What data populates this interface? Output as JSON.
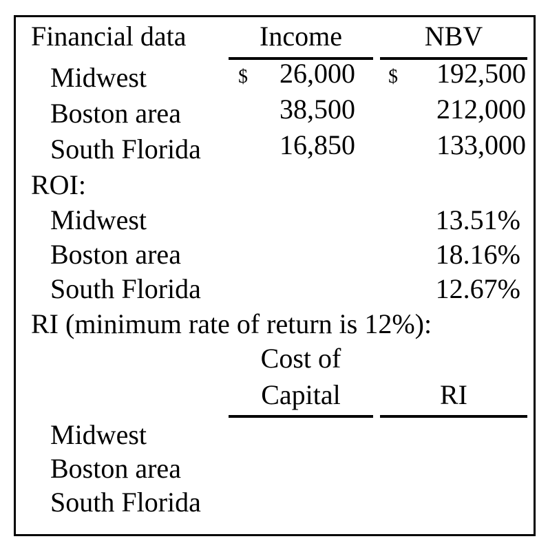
{
  "colors": {
    "text": "#000000",
    "background": "#ffffff",
    "border": "#000000",
    "rule": "#000000"
  },
  "table": {
    "title": "Financial data",
    "columns": {
      "income": "Income",
      "nbv": "NBV"
    },
    "regions": [
      {
        "name": "Midwest",
        "income_currency": "$",
        "income": "26,000",
        "nbv_currency": "$",
        "nbv": "192,500"
      },
      {
        "name": "Boston area",
        "income_currency": "",
        "income": "38,500",
        "nbv_currency": "",
        "nbv": "212,000"
      },
      {
        "name": "South Florida",
        "income_currency": "",
        "income": "16,850",
        "nbv_currency": "",
        "nbv": "133,000"
      }
    ],
    "roi": {
      "label": "ROI:",
      "rows": [
        {
          "name": "Midwest",
          "value": "13.51%"
        },
        {
          "name": "Boston area",
          "value": "18.16%"
        },
        {
          "name": "South Florida",
          "value": "12.67%"
        }
      ]
    },
    "ri": {
      "label": "RI (minimum rate of return is 12%):",
      "columns": {
        "cost_of_capital_line1": "Cost of",
        "cost_of_capital_line2": "Capital",
        "ri": "RI"
      },
      "rows": [
        {
          "name": "Midwest",
          "cost_of_capital": "",
          "ri": ""
        },
        {
          "name": "Boston area",
          "cost_of_capital": "",
          "ri": ""
        },
        {
          "name": "South Florida",
          "cost_of_capital": "",
          "ri": ""
        }
      ]
    }
  }
}
